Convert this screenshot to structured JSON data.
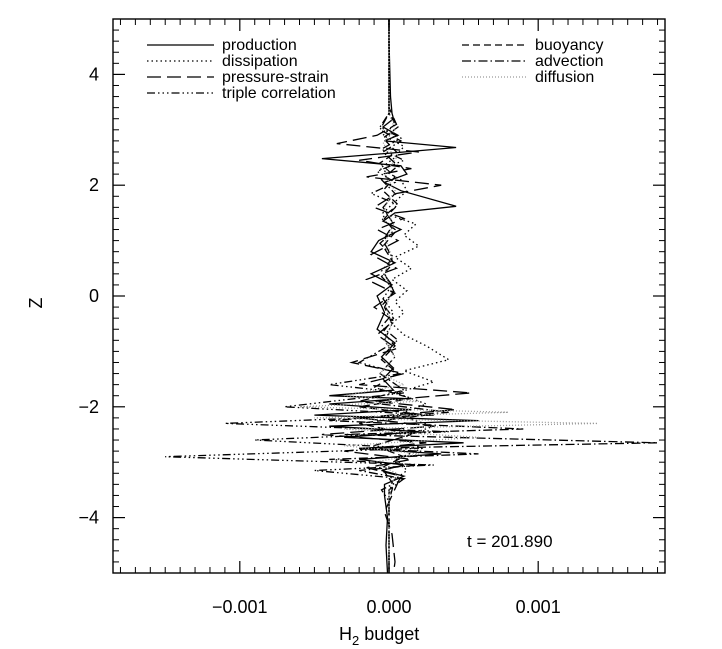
{
  "chart_data": {
    "type": "line",
    "title": "",
    "xlabel": "H",
    "xlabel_sub": "2",
    "xlabel_suffix": " budget",
    "ylabel": "Z",
    "xlim": [
      -0.00185,
      0.00185
    ],
    "ylim": [
      -5,
      5
    ],
    "x_ticks": [
      -0.001,
      0.0,
      0.001
    ],
    "x_tick_labels": [
      "−0.001",
      "0.000",
      "0.001"
    ],
    "y_ticks": [
      -4,
      -2,
      0,
      2,
      4
    ],
    "y_tick_labels": [
      "−4",
      "−2",
      "0",
      "2",
      "4"
    ],
    "grid": false,
    "legend": "top",
    "annotation": "t = 201.890",
    "series": [
      {
        "name": "production",
        "dash": "",
        "color": "#000000",
        "points": [
          [
            0,
            5
          ],
          [
            0,
            4.6
          ],
          [
            1e-05,
            3.6
          ],
          [
            2e-05,
            3.3
          ],
          [
            3e-05,
            3.2
          ],
          [
            -4e-05,
            3.05
          ],
          [
            6e-05,
            2.9
          ],
          [
            -3e-05,
            2.8
          ],
          [
            0.00045,
            2.68
          ],
          [
            0.0001,
            2.6
          ],
          [
            -0.00045,
            2.48
          ],
          [
            8e-05,
            2.35
          ],
          [
            0.00012,
            2.2
          ],
          [
            -3e-05,
            2.05
          ],
          [
            8e-05,
            1.9
          ],
          [
            0.00045,
            1.62
          ],
          [
            4e-05,
            1.5
          ],
          [
            -4e-05,
            1.35
          ],
          [
            8e-05,
            1.2
          ],
          [
            -7e-05,
            1.0
          ],
          [
            -0.00012,
            0.8
          ],
          [
            4e-05,
            0.6
          ],
          [
            -0.00012,
            0.4
          ],
          [
            2e-05,
            0.2
          ],
          [
            -8e-05,
            0
          ],
          [
            -3e-05,
            -0.3
          ],
          [
            -8e-05,
            -0.6
          ],
          [
            4e-05,
            -0.85
          ],
          [
            -5e-05,
            -1.1
          ],
          [
            3e-05,
            -1.3
          ],
          [
            -4e-05,
            -1.5
          ],
          [
            3e-05,
            -1.7
          ],
          [
            -0.0004,
            -1.8
          ],
          [
            0.0001,
            -1.85
          ],
          [
            -0.0004,
            -1.95
          ],
          [
            0.00015,
            -2.05
          ],
          [
            -0.0005,
            -2.15
          ],
          [
            0.0006,
            -2.25
          ],
          [
            -0.0004,
            -2.35
          ],
          [
            0.0002,
            -2.45
          ],
          [
            -0.0003,
            -2.55
          ],
          [
            0.0005,
            -2.65
          ],
          [
            -0.0002,
            -2.75
          ],
          [
            0.00035,
            -2.85
          ],
          [
            -0.0002,
            -2.95
          ],
          [
            0.0001,
            -3.05
          ],
          [
            -5e-05,
            -3.15
          ],
          [
            0.0001,
            -3.25
          ],
          [
            -3e-05,
            -3.4
          ],
          [
            -3e-05,
            -3.6
          ],
          [
            -1e-05,
            -4.0
          ],
          [
            -2e-05,
            -4.5
          ],
          [
            -1e-05,
            -5
          ]
        ]
      },
      {
        "name": "dissipation",
        "dash": "1.5 3",
        "color": "#000000",
        "points": [
          [
            0,
            5
          ],
          [
            0,
            3.3
          ],
          [
            4e-05,
            3.1
          ],
          [
            -4e-05,
            2.9
          ],
          [
            0.0001,
            2.7
          ],
          [
            4e-05,
            2.5
          ],
          [
            -6e-05,
            2.3
          ],
          [
            8e-05,
            2.1
          ],
          [
            0.00012,
            1.9
          ],
          [
            4e-05,
            1.7
          ],
          [
            -4e-05,
            1.5
          ],
          [
            0.00018,
            1.3
          ],
          [
            0.0001,
            1.1
          ],
          [
            0.0002,
            0.9
          ],
          [
            4e-05,
            0.7
          ],
          [
            0.00015,
            0.5
          ],
          [
            2e-05,
            0.3
          ],
          [
            0.00012,
            0.1
          ],
          [
            4e-05,
            -0.1
          ],
          [
            0.0001,
            -0.3
          ],
          [
            2e-05,
            -0.5
          ],
          [
            0.0001,
            -0.7
          ],
          [
            0.00025,
            -0.9
          ],
          [
            0.0004,
            -1.15
          ],
          [
            0.0001,
            -1.35
          ],
          [
            0.0003,
            -1.55
          ],
          [
            5e-05,
            -1.75
          ],
          [
            0.00025,
            -1.95
          ],
          [
            5e-05,
            -2.15
          ],
          [
            0.0003,
            -2.35
          ],
          [
            8e-05,
            -2.55
          ],
          [
            0.00022,
            -2.75
          ],
          [
            5e-05,
            -2.95
          ],
          [
            0.00012,
            -3.15
          ],
          [
            2e-05,
            -3.35
          ],
          [
            0,
            -3.6
          ],
          [
            0,
            -5
          ]
        ]
      },
      {
        "name": "pressure-strain",
        "dash": "14 6",
        "color": "#000000",
        "points": [
          [
            0,
            5
          ],
          [
            0,
            3.4
          ],
          [
            5e-05,
            3.1
          ],
          [
            -8e-05,
            2.9
          ],
          [
            -0.00035,
            2.75
          ],
          [
            0.0002,
            2.6
          ],
          [
            -0.0002,
            2.45
          ],
          [
            0.00015,
            2.3
          ],
          [
            -0.00015,
            2.15
          ],
          [
            0.00035,
            2.0
          ],
          [
            5e-05,
            1.85
          ],
          [
            -0.0001,
            1.6
          ],
          [
            0.0001,
            1.4
          ],
          [
            -8e-05,
            1.2
          ],
          [
            6e-05,
            1.0
          ],
          [
            -0.00012,
            0.75
          ],
          [
            5e-05,
            0.5
          ],
          [
            -0.00015,
            0.3
          ],
          [
            4e-05,
            0.05
          ],
          [
            -0.0001,
            -0.2
          ],
          [
            3e-05,
            -0.45
          ],
          [
            -8e-05,
            -0.7
          ],
          [
            5e-05,
            -0.95
          ],
          [
            -0.00025,
            -1.2
          ],
          [
            0.0001,
            -1.4
          ],
          [
            -0.0002,
            -1.6
          ],
          [
            0.00055,
            -1.75
          ],
          [
            -0.0001,
            -1.9
          ],
          [
            0.00045,
            -2.05
          ],
          [
            -0.0002,
            -2.2
          ],
          [
            0.0003,
            -2.35
          ],
          [
            -0.00045,
            -2.5
          ],
          [
            0.00025,
            -2.65
          ],
          [
            -0.0003,
            -2.8
          ],
          [
            0.00015,
            -2.95
          ],
          [
            -0.00015,
            -3.1
          ],
          [
            8e-05,
            -3.25
          ],
          [
            2e-05,
            -3.6
          ],
          [
            -3e-05,
            -3.9
          ],
          [
            2e-05,
            -4.3
          ],
          [
            4e-05,
            -4.8
          ],
          [
            3e-05,
            -5
          ]
        ]
      },
      {
        "name": "triple correlation",
        "dash": "8 3 1.5 3 1.5 3 1.5 3",
        "color": "#000000",
        "points": [
          [
            0,
            5
          ],
          [
            0,
            3.3
          ],
          [
            -6e-05,
            3.05
          ],
          [
            8e-05,
            2.85
          ],
          [
            -5e-05,
            2.65
          ],
          [
            0.0001,
            2.45
          ],
          [
            -8e-05,
            2.25
          ],
          [
            4e-05,
            2.05
          ],
          [
            -0.00012,
            1.85
          ],
          [
            6e-05,
            1.65
          ],
          [
            -5e-05,
            1.4
          ],
          [
            4e-05,
            1.2
          ],
          [
            -6e-05,
            0.95
          ],
          [
            3e-05,
            0.7
          ],
          [
            -5e-05,
            0.45
          ],
          [
            2e-05,
            0.2
          ],
          [
            -4e-05,
            -0.05
          ],
          [
            3e-05,
            -0.3
          ],
          [
            -5e-05,
            -0.55
          ],
          [
            6e-05,
            -0.8
          ],
          [
            -0.0002,
            -1.2
          ],
          [
            8e-05,
            -1.4
          ],
          [
            -0.0004,
            -1.6
          ],
          [
            0.0001,
            -1.75
          ],
          [
            -0.0007,
            -2.0
          ],
          [
            0.0003,
            -2.15
          ],
          [
            -0.0011,
            -2.3
          ],
          [
            0.0004,
            -2.45
          ],
          [
            -0.0009,
            -2.6
          ],
          [
            0.0002,
            -2.75
          ],
          [
            -0.0015,
            -2.9
          ],
          [
            0.0003,
            -3.05
          ],
          [
            -0.0005,
            -3.15
          ],
          [
            0.0001,
            -3.3
          ],
          [
            -5e-05,
            -3.5
          ],
          [
            0,
            -3.7
          ],
          [
            0,
            -5
          ]
        ]
      },
      {
        "name": "buoyancy",
        "dash": "7 4",
        "color": "#000000",
        "points": [
          [
            0,
            5
          ],
          [
            0,
            3.3
          ],
          [
            6e-05,
            3.05
          ],
          [
            -4e-05,
            2.85
          ],
          [
            5e-05,
            2.6
          ],
          [
            -6e-05,
            2.4
          ],
          [
            4e-05,
            2.15
          ],
          [
            -4e-05,
            1.9
          ],
          [
            6e-05,
            1.65
          ],
          [
            -3e-05,
            1.4
          ],
          [
            4e-05,
            1.15
          ],
          [
            -4e-05,
            0.9
          ],
          [
            3e-05,
            0.6
          ],
          [
            -5e-05,
            0.35
          ],
          [
            4e-05,
            0.1
          ],
          [
            -4e-05,
            -0.15
          ],
          [
            3e-05,
            -0.4
          ],
          [
            -4e-05,
            -0.65
          ],
          [
            4e-05,
            -0.9
          ],
          [
            -5e-05,
            -1.15
          ],
          [
            6e-05,
            -1.4
          ],
          [
            -0.0001,
            -1.65
          ],
          [
            0.00015,
            -1.85
          ],
          [
            -0.0002,
            -2.0
          ],
          [
            0.00025,
            -2.15
          ],
          [
            -0.0002,
            -2.3
          ],
          [
            0.00015,
            -2.5
          ],
          [
            -0.0001,
            -2.7
          ],
          [
            0.0001,
            -2.9
          ],
          [
            -5e-05,
            -3.1
          ],
          [
            3e-05,
            -3.4
          ],
          [
            0,
            -3.7
          ],
          [
            0,
            -5
          ]
        ]
      },
      {
        "name": "advection",
        "dash": "9 3 1.5 3",
        "color": "#000000",
        "points": [
          [
            0,
            5
          ],
          [
            0,
            3.3
          ],
          [
            -6e-05,
            3.0
          ],
          [
            8e-05,
            2.8
          ],
          [
            -4e-05,
            2.6
          ],
          [
            6e-05,
            2.35
          ],
          [
            -5e-05,
            2.1
          ],
          [
            4e-05,
            1.85
          ],
          [
            -4e-05,
            1.6
          ],
          [
            3e-05,
            1.3
          ],
          [
            -4e-05,
            1.0
          ],
          [
            2e-05,
            0.7
          ],
          [
            -3e-05,
            0.4
          ],
          [
            3e-05,
            0.1
          ],
          [
            -3e-05,
            -0.2
          ],
          [
            2e-05,
            -0.5
          ],
          [
            -3e-05,
            -0.8
          ],
          [
            4e-05,
            -1.1
          ],
          [
            -6e-05,
            -1.4
          ],
          [
            0.0001,
            -1.7
          ],
          [
            -0.0002,
            -1.9
          ],
          [
            0.0004,
            -2.1
          ],
          [
            -0.0004,
            -2.25
          ],
          [
            0.0009,
            -2.4
          ],
          [
            -0.0003,
            -2.5
          ],
          [
            0.0018,
            -2.65
          ],
          [
            -0.0002,
            -2.75
          ],
          [
            0.0006,
            -2.85
          ],
          [
            -0.0004,
            -2.95
          ],
          [
            0.0002,
            -3.05
          ],
          [
            -0.0002,
            -3.15
          ],
          [
            0.0001,
            -3.3
          ],
          [
            0,
            -3.5
          ],
          [
            0,
            -5
          ]
        ]
      },
      {
        "name": "diffusion",
        "dash": "1 2",
        "color": "#999999",
        "points": [
          [
            0,
            5
          ],
          [
            0,
            3.3
          ],
          [
            4e-05,
            3.0
          ],
          [
            -4e-05,
            2.75
          ],
          [
            5e-05,
            2.5
          ],
          [
            -3e-05,
            2.2
          ],
          [
            4e-05,
            1.9
          ],
          [
            -3e-05,
            1.6
          ],
          [
            3e-05,
            1.3
          ],
          [
            -2e-05,
            1.0
          ],
          [
            2e-05,
            0.7
          ],
          [
            -3e-05,
            0.4
          ],
          [
            2e-05,
            0.1
          ],
          [
            -2e-05,
            -0.2
          ],
          [
            2e-05,
            -0.5
          ],
          [
            -3e-05,
            -0.8
          ],
          [
            4e-05,
            -1.1
          ],
          [
            -6e-05,
            -1.4
          ],
          [
            0.0001,
            -1.6
          ],
          [
            -0.0003,
            -1.8
          ],
          [
            0.0002,
            -1.9
          ],
          [
            -0.0006,
            -2.0
          ],
          [
            0.0008,
            -2.1
          ],
          [
            -0.0005,
            -2.2
          ],
          [
            0.0014,
            -2.3
          ],
          [
            -0.0003,
            -2.4
          ],
          [
            0.0006,
            -2.55
          ],
          [
            -0.0003,
            -2.7
          ],
          [
            0.0002,
            -2.85
          ],
          [
            -0.0001,
            -3.0
          ],
          [
            5e-05,
            -3.2
          ],
          [
            0,
            -3.5
          ],
          [
            0,
            -5
          ]
        ]
      }
    ]
  }
}
